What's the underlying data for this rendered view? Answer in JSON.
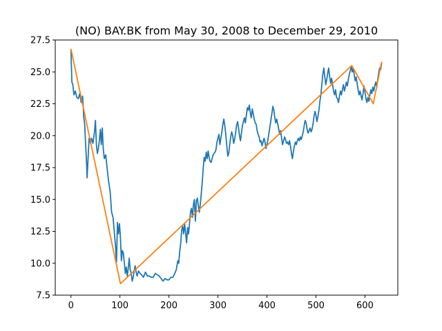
{
  "chart_data": {
    "type": "line",
    "title": "(NO) BAY.BK from May 30, 2008 to December 29, 2010",
    "xlabel": "",
    "ylabel": "",
    "xlim": [
      -32,
      667
    ],
    "ylim": [
      7.5,
      27.5
    ],
    "x_ticks": [
      0,
      100,
      200,
      300,
      400,
      500,
      600
    ],
    "x_tick_labels": [
      "0",
      "100",
      "200",
      "300",
      "400",
      "500",
      "600"
    ],
    "y_ticks": [
      7.5,
      10.0,
      12.5,
      15.0,
      17.5,
      20.0,
      22.5,
      25.0,
      27.5
    ],
    "y_tick_labels": [
      "7.5",
      "10.0",
      "12.5",
      "15.0",
      "17.5",
      "20.0",
      "22.5",
      "25.0",
      "27.5"
    ],
    "grid": false,
    "legend": "none",
    "series": [
      {
        "color": "#1f77b4",
        "points": [
          [
            0,
            26.7
          ],
          [
            2,
            24.2
          ],
          [
            4,
            24.0
          ],
          [
            6,
            23.2
          ],
          [
            9,
            23.5
          ],
          [
            12,
            23.0
          ],
          [
            15,
            22.9
          ],
          [
            18,
            23.3
          ],
          [
            21,
            22.6
          ],
          [
            24,
            23.1
          ],
          [
            26,
            21.5
          ],
          [
            28,
            20.9
          ],
          [
            30,
            19.3
          ],
          [
            32,
            17.8
          ],
          [
            33,
            16.7
          ],
          [
            35,
            18.2
          ],
          [
            37,
            19.8
          ],
          [
            40,
            19.4
          ],
          [
            42,
            19.8
          ],
          [
            45,
            19.4
          ],
          [
            48,
            20.3
          ],
          [
            50,
            21.2
          ],
          [
            52,
            19.3
          ],
          [
            54,
            18.6
          ],
          [
            56,
            19.0
          ],
          [
            58,
            19.6
          ],
          [
            60,
            20.5
          ],
          [
            62,
            19.3
          ],
          [
            64,
            20.6
          ],
          [
            66,
            19.0
          ],
          [
            68,
            18.2
          ],
          [
            71,
            18.5
          ],
          [
            74,
            17.4
          ],
          [
            77,
            16.4
          ],
          [
            80,
            15.6
          ],
          [
            83,
            14.0
          ],
          [
            86,
            13.6
          ],
          [
            89,
            12.2
          ],
          [
            91,
            11.3
          ],
          [
            93,
            10.1
          ],
          [
            95,
            13.2
          ],
          [
            97,
            12.3
          ],
          [
            99,
            13.1
          ],
          [
            101,
            12.0
          ],
          [
            103,
            10.2
          ],
          [
            105,
            11.0
          ],
          [
            107,
            10.8
          ],
          [
            109,
            10.0
          ],
          [
            111,
            9.2
          ],
          [
            113,
            9.7
          ],
          [
            115,
            9.0
          ],
          [
            117,
            9.6
          ],
          [
            119,
            10.4
          ],
          [
            121,
            9.5
          ],
          [
            123,
            9.2
          ],
          [
            125,
            8.6
          ],
          [
            127,
            8.9
          ],
          [
            129,
            9.4
          ],
          [
            131,
            9.8
          ],
          [
            133,
            9.3
          ],
          [
            135,
            9.0
          ],
          [
            138,
            9.4
          ],
          [
            141,
            9.2
          ],
          [
            144,
            9.1
          ],
          [
            148,
            8.9
          ],
          [
            152,
            9.3
          ],
          [
            156,
            9.0
          ],
          [
            160,
            9.0
          ],
          [
            164,
            8.9
          ],
          [
            168,
            8.9
          ],
          [
            172,
            9.2
          ],
          [
            176,
            9.1
          ],
          [
            180,
            9.0
          ],
          [
            184,
            8.8
          ],
          [
            188,
            8.6
          ],
          [
            192,
            8.8
          ],
          [
            196,
            8.7
          ],
          [
            200,
            8.7
          ],
          [
            204,
            8.9
          ],
          [
            208,
            8.9
          ],
          [
            212,
            9.2
          ],
          [
            215,
            9.5
          ],
          [
            218,
            10.2
          ],
          [
            220,
            10.0
          ],
          [
            222,
            10.9
          ],
          [
            224,
            11.6
          ],
          [
            226,
            12.6
          ],
          [
            228,
            12.9
          ],
          [
            230,
            12.3
          ],
          [
            232,
            13.1
          ],
          [
            234,
            12.4
          ],
          [
            236,
            11.6
          ],
          [
            238,
            12.8
          ],
          [
            240,
            12.3
          ],
          [
            242,
            13.1
          ],
          [
            244,
            14.0
          ],
          [
            246,
            14.3
          ],
          [
            248,
            13.6
          ],
          [
            250,
            14.6
          ],
          [
            252,
            15.0
          ],
          [
            254,
            13.3
          ],
          [
            256,
            14.9
          ],
          [
            258,
            15.1
          ],
          [
            260,
            14.5
          ],
          [
            262,
            14.0
          ],
          [
            264,
            14.6
          ],
          [
            266,
            15.5
          ],
          [
            268,
            16.4
          ],
          [
            270,
            17.5
          ],
          [
            272,
            18.3
          ],
          [
            274,
            18.0
          ],
          [
            276,
            18.7
          ],
          [
            278,
            18.2
          ],
          [
            280,
            18.8
          ],
          [
            282,
            18.3
          ],
          [
            284,
            18.0
          ],
          [
            286,
            17.9
          ],
          [
            288,
            18.2
          ],
          [
            290,
            18.5
          ],
          [
            292,
            18.6
          ],
          [
            294,
            18.7
          ],
          [
            296,
            18.9
          ],
          [
            298,
            19.5
          ],
          [
            300,
            19.8
          ],
          [
            302,
            20.1
          ],
          [
            304,
            19.3
          ],
          [
            306,
            19.8
          ],
          [
            308,
            20.3
          ],
          [
            310,
            20.9
          ],
          [
            312,
            21.3
          ],
          [
            314,
            20.8
          ],
          [
            316,
            20.1
          ],
          [
            318,
            19.2
          ],
          [
            320,
            18.4
          ],
          [
            322,
            18.6
          ],
          [
            324,
            19.3
          ],
          [
            326,
            19.9
          ],
          [
            328,
            20.3
          ],
          [
            330,
            20.0
          ],
          [
            332,
            19.4
          ],
          [
            334,
            19.7
          ],
          [
            336,
            20.2
          ],
          [
            338,
            20.8
          ],
          [
            340,
            21.1
          ],
          [
            342,
            20.6
          ],
          [
            344,
            20.0
          ],
          [
            346,
            19.6
          ],
          [
            348,
            20.2
          ],
          [
            350,
            20.8
          ],
          [
            352,
            21.1
          ],
          [
            354,
            21.4
          ],
          [
            356,
            21.0
          ],
          [
            358,
            21.6
          ],
          [
            360,
            22.2
          ],
          [
            362,
            22.0
          ],
          [
            364,
            22.4
          ],
          [
            366,
            21.8
          ],
          [
            368,
            21.4
          ],
          [
            370,
            22.1
          ],
          [
            372,
            21.7
          ],
          [
            374,
            21.3
          ],
          [
            376,
            21.0
          ],
          [
            378,
            20.9
          ],
          [
            380,
            20.4
          ],
          [
            382,
            20.1
          ],
          [
            384,
            19.9
          ],
          [
            386,
            19.5
          ],
          [
            388,
            19.6
          ],
          [
            390,
            19.2
          ],
          [
            392,
            19.5
          ],
          [
            394,
            19.8
          ],
          [
            396,
            19.5
          ],
          [
            398,
            19.0
          ],
          [
            400,
            19.3
          ],
          [
            402,
            19.7
          ],
          [
            404,
            20.2
          ],
          [
            406,
            20.7
          ],
          [
            408,
            21.2
          ],
          [
            410,
            21.7
          ],
          [
            412,
            22.3
          ],
          [
            414,
            22.0
          ],
          [
            416,
            21.4
          ],
          [
            418,
            21.0
          ],
          [
            420,
            21.3
          ],
          [
            422,
            20.9
          ],
          [
            424,
            20.5
          ],
          [
            426,
            20.1
          ],
          [
            428,
            20.4
          ],
          [
            430,
            19.8
          ],
          [
            432,
            19.3
          ],
          [
            434,
            19.6
          ],
          [
            436,
            19.9
          ],
          [
            438,
            19.7
          ],
          [
            440,
            19.4
          ],
          [
            442,
            19.5
          ],
          [
            444,
            19.3
          ],
          [
            446,
            19.6
          ],
          [
            448,
            19.2
          ],
          [
            450,
            18.6
          ],
          [
            452,
            18.2
          ],
          [
            454,
            18.8
          ],
          [
            456,
            19.2
          ],
          [
            458,
            19.5
          ],
          [
            460,
            19.3
          ],
          [
            462,
            19.6
          ],
          [
            464,
            19.8
          ],
          [
            466,
            19.6
          ],
          [
            468,
            19.9
          ],
          [
            470,
            19.7
          ],
          [
            472,
            20.0
          ],
          [
            474,
            20.3
          ],
          [
            476,
            20.8
          ],
          [
            478,
            21.2
          ],
          [
            480,
            21.0
          ],
          [
            482,
            20.5
          ],
          [
            484,
            20.2
          ],
          [
            486,
            20.4
          ],
          [
            488,
            20.6
          ],
          [
            490,
            20.3
          ],
          [
            492,
            20.5
          ],
          [
            494,
            20.9
          ],
          [
            496,
            21.5
          ],
          [
            498,
            21.9
          ],
          [
            500,
            21.6
          ],
          [
            502,
            21.1
          ],
          [
            504,
            21.5
          ],
          [
            506,
            22.0
          ],
          [
            508,
            22.7
          ],
          [
            510,
            23.2
          ],
          [
            512,
            24.0
          ],
          [
            514,
            24.8
          ],
          [
            516,
            25.3
          ],
          [
            518,
            24.6
          ],
          [
            520,
            24.0
          ],
          [
            522,
            24.4
          ],
          [
            524,
            24.9
          ],
          [
            526,
            25.3
          ],
          [
            528,
            24.6
          ],
          [
            530,
            24.1
          ],
          [
            532,
            24.5
          ],
          [
            534,
            24.0
          ],
          [
            536,
            23.5
          ],
          [
            538,
            23.2
          ],
          [
            540,
            23.6
          ],
          [
            542,
            23.0
          ],
          [
            544,
            22.9
          ],
          [
            546,
            22.6
          ],
          [
            548,
            23.1
          ],
          [
            550,
            23.5
          ],
          [
            552,
            23.2
          ],
          [
            554,
            23.6
          ],
          [
            556,
            24.0
          ],
          [
            558,
            23.5
          ],
          [
            560,
            23.8
          ],
          [
            562,
            24.2
          ],
          [
            564,
            23.9
          ],
          [
            566,
            24.4
          ],
          [
            568,
            24.8
          ],
          [
            570,
            25.1
          ],
          [
            572,
            25.4
          ],
          [
            574,
            25.0
          ],
          [
            576,
            25.3
          ],
          [
            578,
            24.8
          ],
          [
            580,
            24.3
          ],
          [
            582,
            24.6
          ],
          [
            584,
            24.1
          ],
          [
            586,
            23.6
          ],
          [
            588,
            23.2
          ],
          [
            590,
            23.5
          ],
          [
            592,
            23.1
          ],
          [
            594,
            22.8
          ],
          [
            596,
            23.3
          ],
          [
            598,
            23.9
          ],
          [
            600,
            23.4
          ],
          [
            602,
            22.9
          ],
          [
            604,
            22.6
          ],
          [
            606,
            23.0
          ],
          [
            608,
            22.7
          ],
          [
            610,
            23.2
          ],
          [
            612,
            23.6
          ],
          [
            614,
            23.3
          ],
          [
            616,
            23.8
          ],
          [
            618,
            23.5
          ],
          [
            620,
            23.9
          ],
          [
            622,
            24.2
          ],
          [
            624,
            23.8
          ],
          [
            626,
            24.4
          ],
          [
            628,
            24.9
          ],
          [
            630,
            25.3
          ],
          [
            632,
            25.2
          ],
          [
            634,
            25.7
          ]
        ]
      },
      {
        "color": "#ff7f0e",
        "points": [
          [
            0,
            26.8
          ],
          [
            101,
            8.4
          ],
          [
            573,
            25.5
          ],
          [
            617,
            22.5
          ],
          [
            634,
            25.8
          ]
        ]
      }
    ]
  }
}
